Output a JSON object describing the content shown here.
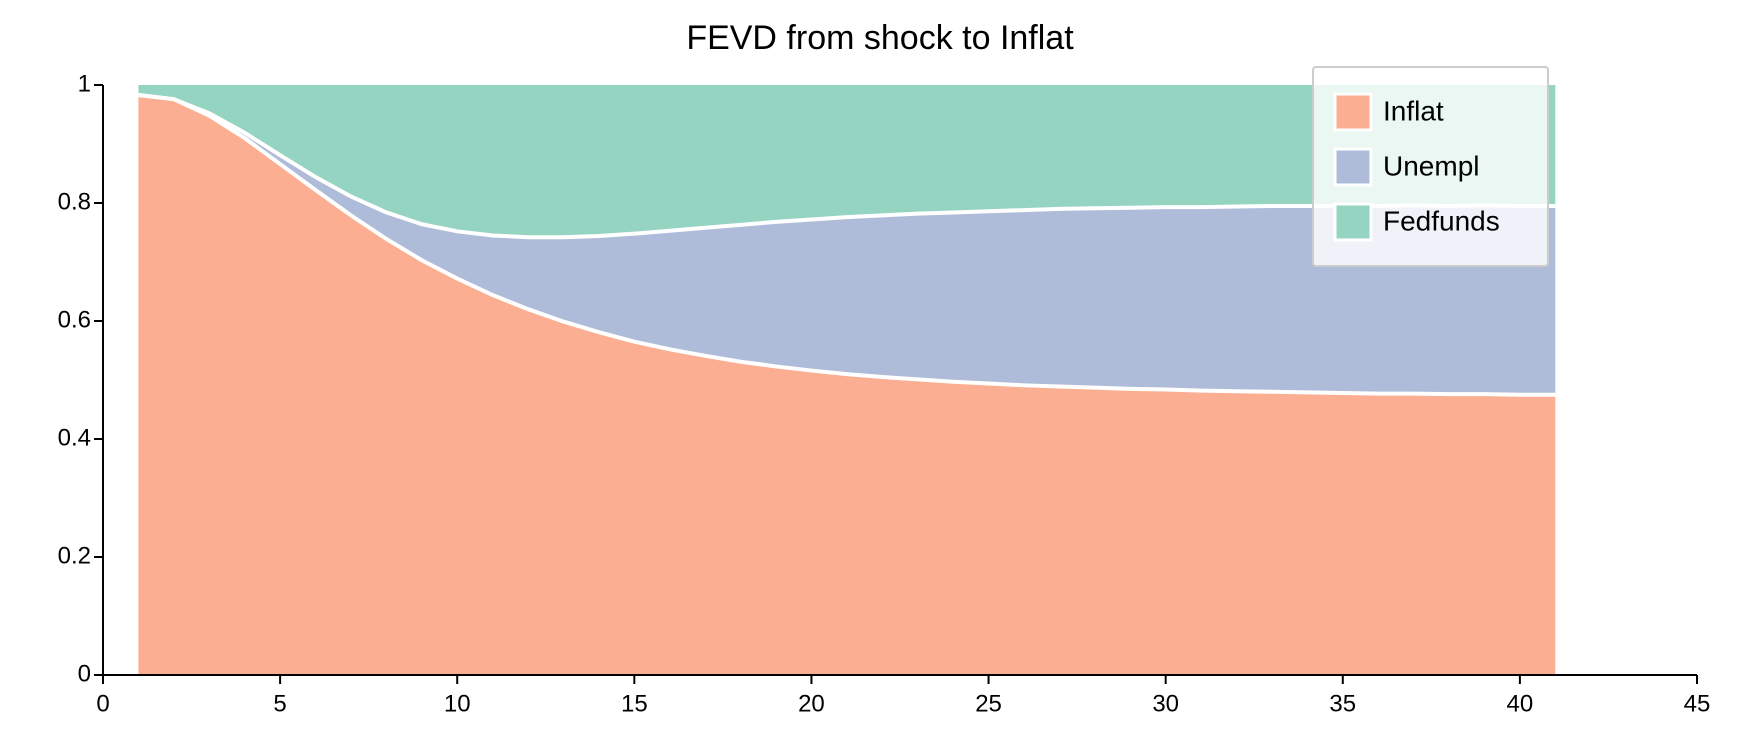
{
  "chart_data": {
    "type": "area",
    "stacked": true,
    "title": "FEVD from shock to Inflat",
    "xlabel": "",
    "ylabel": "",
    "xlim": [
      0,
      45
    ],
    "ylim": [
      0,
      1
    ],
    "x_ticks": [
      0,
      5,
      10,
      15,
      20,
      25,
      30,
      35,
      40,
      45
    ],
    "y_ticks": [
      0,
      0.2,
      0.4,
      0.6,
      0.8,
      1
    ],
    "y_tick_labels": [
      "0",
      "0.2",
      "0.4",
      "0.6",
      "0.8",
      "1"
    ],
    "grid": false,
    "legend": {
      "placement": "top-right"
    },
    "x": [
      1,
      2,
      3,
      4,
      5,
      6,
      7,
      8,
      9,
      10,
      11,
      12,
      13,
      14,
      15,
      16,
      17,
      18,
      19,
      20,
      21,
      22,
      23,
      24,
      25,
      26,
      27,
      28,
      29,
      30,
      31,
      32,
      33,
      34,
      35,
      36,
      37,
      38,
      39,
      40,
      41
    ],
    "series": [
      {
        "name": "Inflat",
        "color": "#fbae91",
        "values": [
          0.983,
          0.976,
          0.948,
          0.91,
          0.866,
          0.822,
          0.779,
          0.739,
          0.703,
          0.672,
          0.644,
          0.62,
          0.599,
          0.581,
          0.565,
          0.552,
          0.541,
          0.531,
          0.523,
          0.516,
          0.51,
          0.505,
          0.501,
          0.497,
          0.494,
          0.491,
          0.489,
          0.487,
          0.485,
          0.484,
          0.482,
          0.481,
          0.48,
          0.479,
          0.478,
          0.477,
          0.477,
          0.476,
          0.476,
          0.475,
          0.475
        ]
      },
      {
        "name": "Unempl",
        "color": "#afbcd9",
        "values": [
          0.0,
          0.0,
          0.004,
          0.009,
          0.015,
          0.022,
          0.032,
          0.045,
          0.061,
          0.08,
          0.101,
          0.122,
          0.143,
          0.163,
          0.183,
          0.201,
          0.217,
          0.232,
          0.245,
          0.256,
          0.266,
          0.274,
          0.281,
          0.287,
          0.292,
          0.297,
          0.301,
          0.304,
          0.307,
          0.309,
          0.311,
          0.313,
          0.315,
          0.316,
          0.317,
          0.318,
          0.319,
          0.319,
          0.32,
          0.32,
          0.32
        ]
      },
      {
        "name": "Fedfunds",
        "color": "#96d4c2",
        "values": [
          0.017,
          0.024,
          0.048,
          0.081,
          0.119,
          0.156,
          0.189,
          0.216,
          0.236,
          0.248,
          0.255,
          0.258,
          0.258,
          0.256,
          0.252,
          0.247,
          0.242,
          0.237,
          0.232,
          0.228,
          0.224,
          0.221,
          0.218,
          0.216,
          0.214,
          0.212,
          0.21,
          0.209,
          0.208,
          0.207,
          0.207,
          0.206,
          0.205,
          0.205,
          0.205,
          0.205,
          0.204,
          0.205,
          0.204,
          0.205,
          0.205
        ]
      }
    ]
  }
}
